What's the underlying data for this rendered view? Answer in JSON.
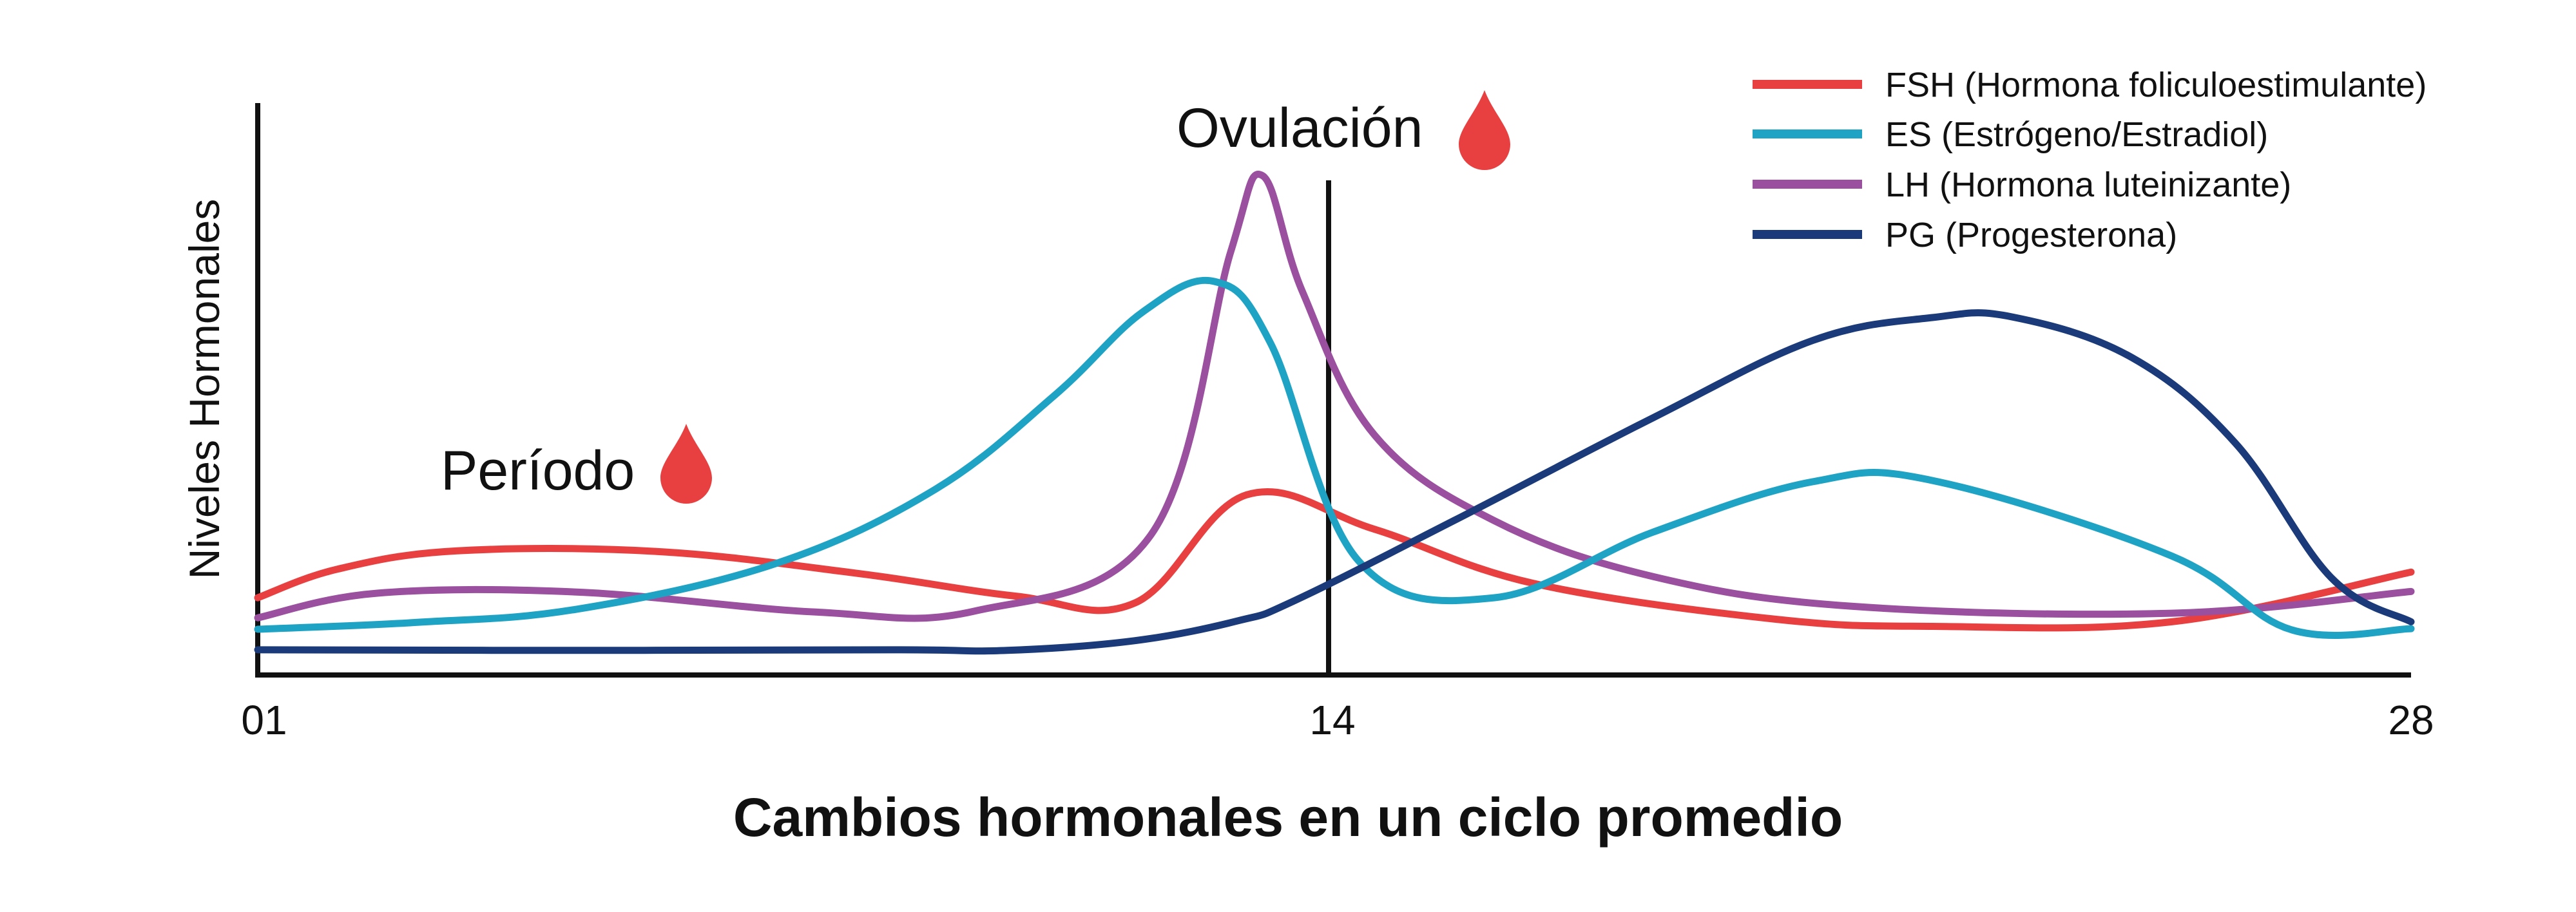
{
  "chart_data": {
    "type": "line",
    "title": "Cambios hormonales en un ciclo promedio",
    "xlabel": "",
    "ylabel": "Niveles Hormonales",
    "x_ticks": [
      "01",
      "14",
      "28"
    ],
    "xlim": [
      1,
      28
    ],
    "ylim": [
      0,
      100
    ],
    "grid": false,
    "legend_position": "top-right",
    "annotations": [
      {
        "text": "Período",
        "x": 6.2,
        "icon": "blood-drop-icon"
      },
      {
        "text": "Ovulación",
        "x": 14,
        "icon": "blood-drop-icon"
      }
    ],
    "colors": {
      "FSH": "#e84040",
      "ES": "#1fa3c4",
      "LH": "#9b4f9f",
      "PG": "#1b3a7a",
      "drop": "#e84040",
      "axis": "#111111"
    },
    "series": [
      {
        "key": "FSH",
        "name": "FSH (Hormona foliculoestimulante)",
        "points": [
          [
            1,
            13.5
          ],
          [
            2,
            18.5
          ],
          [
            3.5,
            21.7
          ],
          [
            6,
            21.6
          ],
          [
            8.5,
            17.8
          ],
          [
            10.5,
            13.8
          ],
          [
            12,
            12.6
          ],
          [
            13.4,
            31.5
          ],
          [
            15,
            25.5
          ],
          [
            17,
            16
          ],
          [
            20,
            9.8
          ],
          [
            22,
            8.5
          ],
          [
            25,
            9.3
          ],
          [
            28,
            18
          ]
        ]
      },
      {
        "key": "ES",
        "name": "ES (Estrógeno/Estradiol)",
        "points": [
          [
            1,
            8
          ],
          [
            3,
            9.2
          ],
          [
            5,
            11.5
          ],
          [
            7.5,
            19.5
          ],
          [
            9.5,
            32.5
          ],
          [
            11,
            49
          ],
          [
            12.1,
            63.5
          ],
          [
            13,
            68.8
          ],
          [
            13.7,
            58
          ],
          [
            14.8,
            20
          ],
          [
            16.5,
            13.5
          ],
          [
            18.5,
            25
          ],
          [
            20.5,
            33.8
          ],
          [
            22,
            34
          ],
          [
            25,
            20.8
          ],
          [
            26.5,
            7.9
          ],
          [
            28,
            8.1
          ]
        ]
      },
      {
        "key": "LH",
        "name": "LH (Hormona luteinizante)",
        "points": [
          [
            1,
            10
          ],
          [
            2.5,
            14.3
          ],
          [
            5,
            14.5
          ],
          [
            8,
            11
          ],
          [
            10,
            11.2
          ],
          [
            12.2,
            24.5
          ],
          [
            13.2,
            74
          ],
          [
            13.6,
            87.3
          ],
          [
            14.1,
            67
          ],
          [
            15,
            42
          ],
          [
            16.5,
            27
          ],
          [
            18.5,
            17.2
          ],
          [
            21,
            12
          ],
          [
            25,
            10.8
          ],
          [
            28,
            14.6
          ]
        ]
      },
      {
        "key": "PG",
        "name": "PG (Progesterona)",
        "points": [
          [
            1,
            4.4
          ],
          [
            5,
            4.3
          ],
          [
            9,
            4.4
          ],
          [
            10.4,
            4.3
          ],
          [
            12,
            6
          ],
          [
            13.3,
            9.5
          ],
          [
            14,
            13
          ],
          [
            16,
            27
          ],
          [
            18.5,
            45
          ],
          [
            20.5,
            58.5
          ],
          [
            22,
            62.5
          ],
          [
            23,
            62.6
          ],
          [
            24.5,
            55.5
          ],
          [
            25.8,
            40.5
          ],
          [
            27,
            17
          ],
          [
            28,
            9.3
          ]
        ]
      }
    ]
  }
}
